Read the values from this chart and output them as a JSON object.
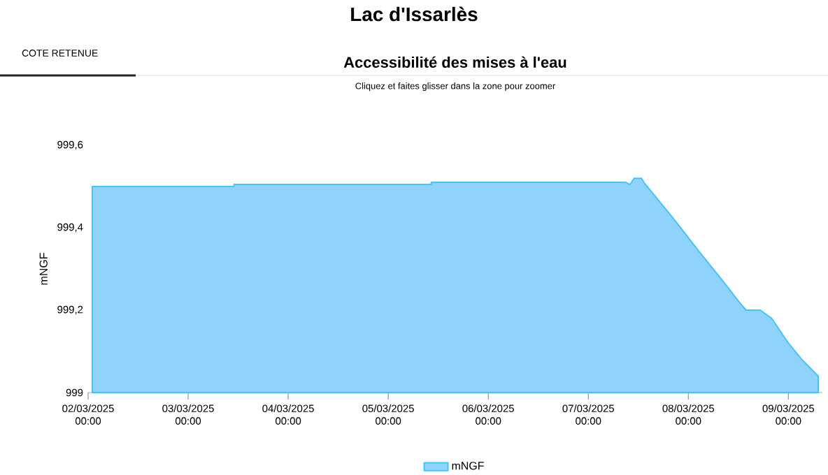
{
  "chart_data": {
    "type": "area",
    "title": "Accessibilité des mises à l'eau",
    "subtitle": "Cliquez et faites glisser dans la zone pour zoomer",
    "annotations": [
      "Lac d'Issarlès",
      "COTE RETENUE"
    ],
    "ylabel": "mNGF",
    "x": [
      "2025-03-02T01:00",
      "2025-03-03T11:00",
      "2025-03-03T11:00",
      "2025-03-05T10:20",
      "2025-03-05T10:20",
      "2025-03-07T09:00",
      "2025-03-07T10:00",
      "2025-03-07T11:00",
      "2025-03-07T12:45",
      "2025-03-07T13:20",
      "2025-03-07T20:35",
      "2025-03-08T02:45",
      "2025-03-08T08:20",
      "2025-03-08T12:10",
      "2025-03-08T13:50",
      "2025-03-08T17:15",
      "2025-03-08T20:00",
      "2025-03-09T00:00",
      "2025-03-09T03:15",
      "2025-03-09T07:10"
    ],
    "series": [
      {
        "name": "mNGF",
        "color": "#8fd3fb",
        "values": [
          999.5,
          999.5,
          999.505,
          999.505,
          999.51,
          999.51,
          999.505,
          999.52,
          999.52,
          999.51,
          999.42,
          999.34,
          999.27,
          999.22,
          999.2,
          999.2,
          999.18,
          999.12,
          999.08,
          999.04
        ]
      }
    ],
    "xlim": [
      "2025-03-02T00:00",
      "2025-03-09T08:10"
    ],
    "xticks": [
      {
        "value": "2025-03-02T00:00",
        "label": "02/03/2025 00:00"
      },
      {
        "value": "2025-03-03T00:00",
        "label": "03/03/2025 00:00"
      },
      {
        "value": "2025-03-04T00:00",
        "label": "04/03/2025 00:00"
      },
      {
        "value": "2025-03-05T00:00",
        "label": "05/03/2025 00:00"
      },
      {
        "value": "2025-03-06T00:00",
        "label": "06/03/2025 00:00"
      },
      {
        "value": "2025-03-07T00:00",
        "label": "07/03/2025 00:00"
      },
      {
        "value": "2025-03-08T00:00",
        "label": "08/03/2025 00:00"
      },
      {
        "value": "2025-03-09T00:00",
        "label": "09/03/2025 00:00"
      }
    ],
    "ylim": [
      999,
      999.6
    ],
    "yticks": [
      {
        "value": 999,
        "label": "999"
      },
      {
        "value": 999.2,
        "label": "999,2"
      },
      {
        "value": 999.4,
        "label": "999,4"
      },
      {
        "value": 999.6,
        "label": "999,6"
      }
    ],
    "grid": false,
    "legend": "bottom",
    "marker": "none"
  }
}
